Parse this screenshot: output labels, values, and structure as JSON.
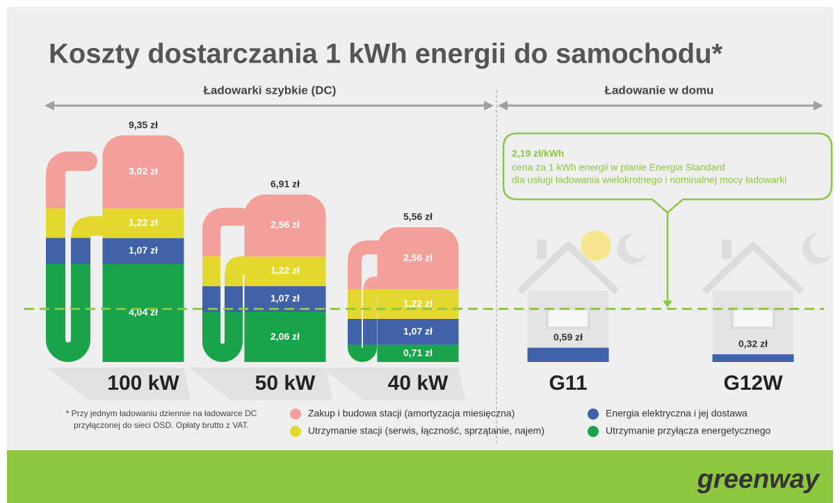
{
  "title": "Koszty dostarczania 1 kWh energii do samochodu*",
  "groups": [
    "Ładowarki szybkie (DC)",
    "Ładowanie w domu"
  ],
  "chart_data": {
    "type": "bar",
    "stacked": true,
    "categories": [
      "100 kW",
      "50 kW",
      "40 kW",
      "G11",
      "G12W"
    ],
    "series": [
      {
        "name": "Zakup i budowa stacji (amortyzacja miesięczna)",
        "color": "#f4a09a",
        "values": [
          3.02,
          2.56,
          2.56,
          null,
          null
        ],
        "value_labels": [
          "3,02 zł",
          "2,56 zł",
          "2,56 zł",
          null,
          null
        ]
      },
      {
        "name": "Utrzymanie stacji (serwis, łączność, sprzątanie, najem)",
        "color": "#e3d82e",
        "values": [
          1.22,
          1.22,
          1.22,
          null,
          null
        ],
        "value_labels": [
          "1,22 zł",
          "1,22 zł",
          "1,22 zł",
          null,
          null
        ]
      },
      {
        "name": "Energia elektryczna i jej dostawa",
        "color": "#3f62a8",
        "values": [
          1.07,
          1.07,
          1.07,
          0.59,
          0.32
        ],
        "value_labels": [
          "1,07 zł",
          "1,07 zł",
          "1,07 zł",
          "0,59 zł",
          "0,32 zł"
        ]
      },
      {
        "name": "Utrzymanie przyłącza energetycznego",
        "color": "#19a34a",
        "values": [
          4.04,
          2.06,
          0.71,
          null,
          null
        ],
        "value_labels": [
          "4,04 zł",
          "2,06 zł",
          "0,71 zł",
          null,
          null
        ]
      }
    ],
    "totals": [
      9.35,
      6.91,
      5.56,
      null,
      null
    ],
    "total_labels": [
      "9,35 zł",
      "6,91 zł",
      "5,56 zł",
      null,
      null
    ],
    "reference": {
      "value": 2.19,
      "label": "2,19 zł/kWh",
      "color": "#8dc63f",
      "lines": [
        "cena za 1 kWh energii w planie Energia Standard",
        "dla usługi ładowania wielokrotnego i nominalnej mocy ładowarki"
      ]
    }
  },
  "footnote": [
    "* Przy jednym ładowaniu dziennie na ładowarce DC",
    "przyłączonej do sieci OSD. Opłaty brutto z VAT."
  ],
  "logo": "greenway"
}
